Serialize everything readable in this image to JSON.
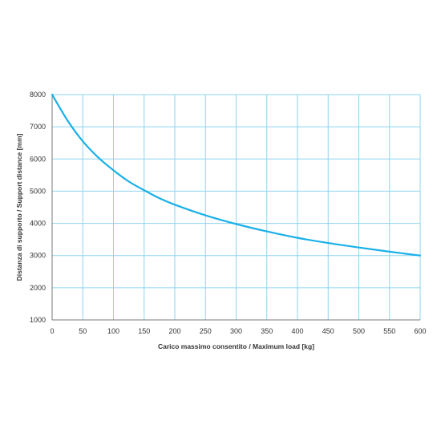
{
  "chart_data": {
    "type": "line",
    "title": "",
    "xlabel": "Carico massimo consentito / Maximum load [kg]",
    "ylabel": "Distanza di supporto / Support distance [mm]",
    "xlim": [
      0,
      600
    ],
    "ylim": [
      1000,
      8000
    ],
    "xticks": [
      0,
      50,
      100,
      150,
      200,
      250,
      300,
      350,
      400,
      450,
      500,
      550,
      600
    ],
    "yticks": [
      1000,
      2000,
      3000,
      4000,
      5000,
      6000,
      7000,
      8000
    ],
    "grid": true,
    "legend": "none",
    "line_color": "#1ab0e8",
    "grid_color": "#8ed3ef",
    "series": [
      {
        "x": [
          0,
          25,
          50,
          75,
          100,
          125,
          150,
          175,
          200,
          250,
          300,
          350,
          400,
          450,
          500,
          550,
          600
        ],
        "y": [
          8000,
          7200,
          6550,
          6050,
          5650,
          5300,
          5030,
          4780,
          4580,
          4250,
          3980,
          3750,
          3550,
          3390,
          3250,
          3120,
          3000
        ]
      }
    ]
  }
}
